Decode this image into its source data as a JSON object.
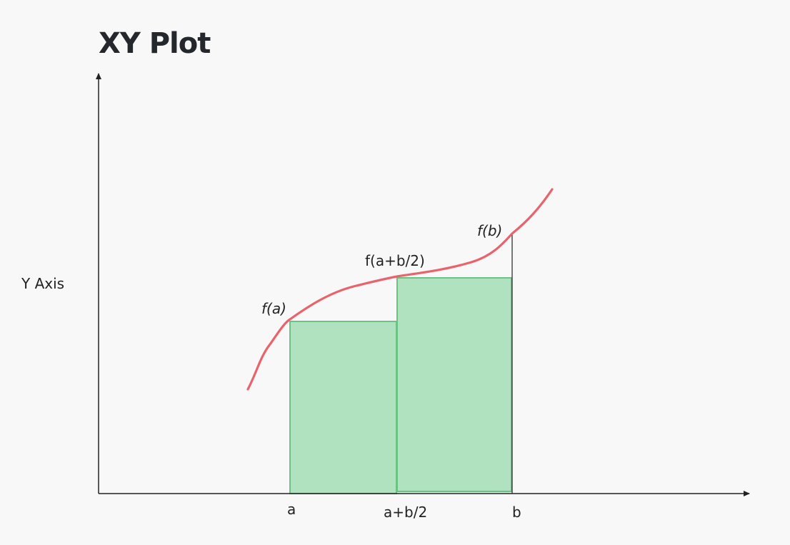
{
  "diagram": {
    "title": "XY Plot",
    "y_axis_label": "Y Axis",
    "x_tick_labels": {
      "a": "a",
      "mid": "a+b/2",
      "b": "b"
    },
    "point_labels": {
      "fa": "f(a)",
      "fmid": "f(a+b/2)",
      "fb": "f(b)"
    },
    "colors": {
      "curve": "#e8636b",
      "rect_fill": "#b0e2bf",
      "rect_stroke": "#6cc283",
      "axis": "#222222",
      "title": "#24282d"
    }
  }
}
